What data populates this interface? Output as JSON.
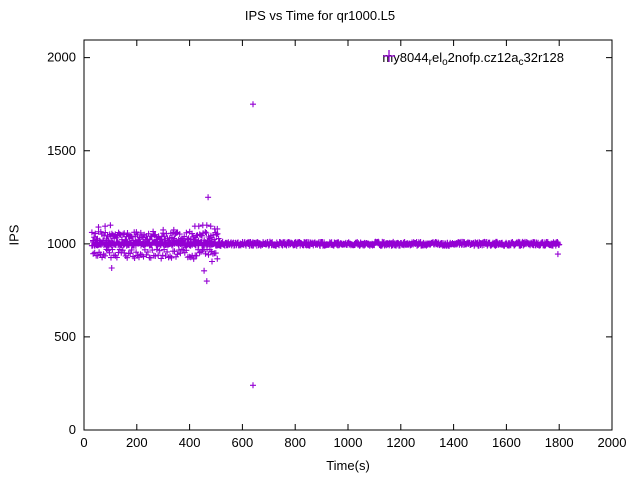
{
  "colors": {
    "marker": "#9400d3",
    "axis": "#000000",
    "text": "#000000",
    "background": "#ffffff"
  },
  "chart_data": {
    "type": "scatter",
    "title": "IPS vs Time for qr1000.L5",
    "xlabel": "Time(s)",
    "ylabel": "IPS",
    "xlim": [
      0,
      2000
    ],
    "ylim": [
      0,
      2095
    ],
    "x_ticks": [
      0,
      200,
      400,
      600,
      800,
      1000,
      1200,
      1400,
      1600,
      1800,
      2000
    ],
    "y_ticks": [
      0,
      500,
      1000,
      1500,
      2000
    ],
    "grid": false,
    "marker_style": "plus",
    "legend": {
      "position": "top-right-inside",
      "segments": [
        {
          "text": "my8044"
        },
        {
          "text": "r",
          "sub": true
        },
        {
          "text": "el"
        },
        {
          "text": "o",
          "sub": true
        },
        {
          "text": "2nofp.cz12a"
        },
        {
          "text": "c",
          "sub": true
        },
        {
          "text": "32r128"
        }
      ]
    },
    "dense_bands": [
      {
        "name": "main-throughput-line",
        "x_start": 30,
        "x_end": 1800,
        "count": 820,
        "y_center": 1000,
        "y_spread": 11,
        "seed": 1
      },
      {
        "name": "upper-warmup-scatter",
        "x_start": 30,
        "x_end": 510,
        "count": 115,
        "y_center": 1040,
        "y_spread": 26,
        "seed": 2
      },
      {
        "name": "lower-warmup-scatter",
        "x_start": 35,
        "x_end": 505,
        "count": 85,
        "y_center": 945,
        "y_spread": 26,
        "seed": 3
      }
    ],
    "outlier_points": [
      [
        55,
        1090
      ],
      [
        80,
        1095
      ],
      [
        100,
        1100
      ],
      [
        105,
        870
      ],
      [
        300,
        1075
      ],
      [
        340,
        1075
      ],
      [
        420,
        1095
      ],
      [
        435,
        1095
      ],
      [
        450,
        1100
      ],
      [
        465,
        1100
      ],
      [
        480,
        1095
      ],
      [
        495,
        1080
      ],
      [
        505,
        1080
      ],
      [
        470,
        1250
      ],
      [
        455,
        855
      ],
      [
        465,
        800
      ],
      [
        485,
        905
      ],
      [
        640,
        1750
      ],
      [
        640,
        240
      ],
      [
        1795,
        945
      ]
    ]
  }
}
